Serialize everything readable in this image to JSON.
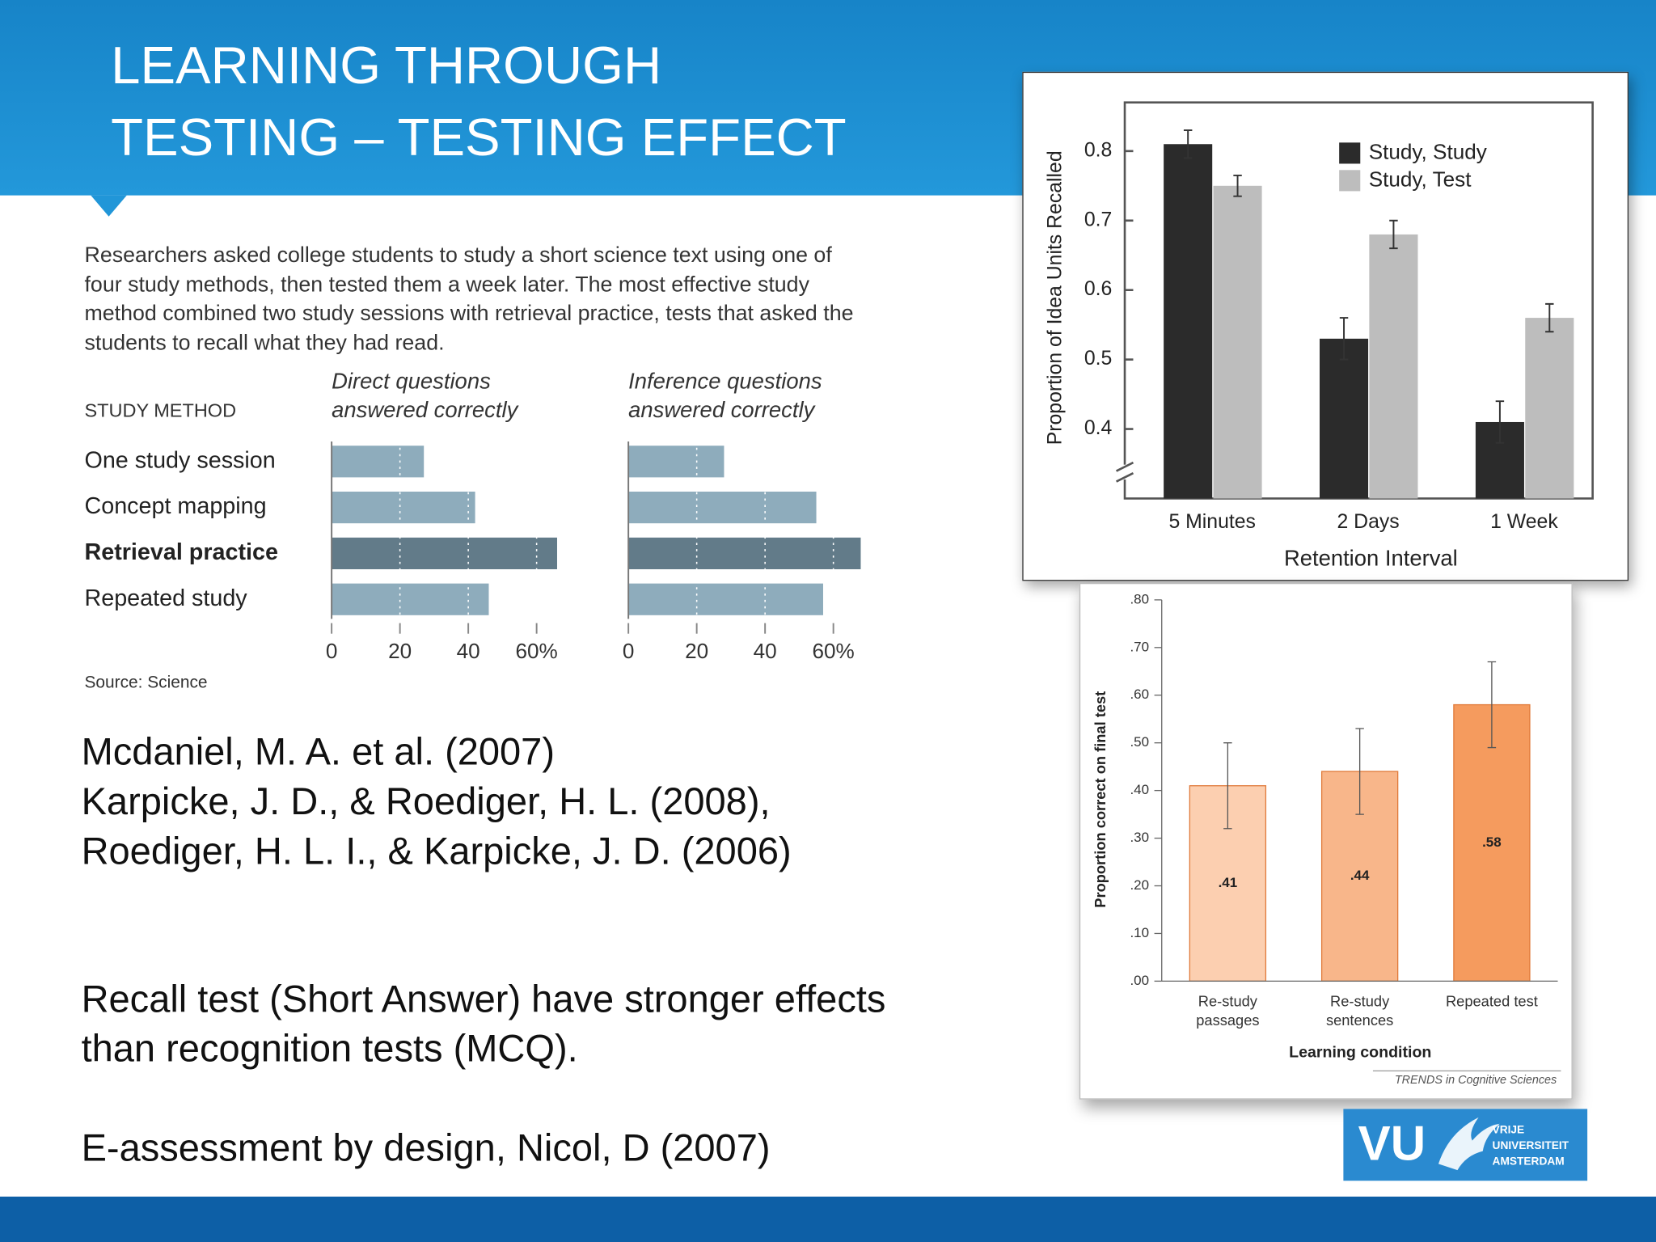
{
  "slide": {
    "title": "LEARNING THROUGH TESTING – TESTING EFFECT",
    "references": [
      "Mcdaniel, M. A. et al. (2007)",
      "Karpicke, J. D., & Roediger, H. L. (2008), Roediger, H. L. I., & Karpicke, J. D. (2006)"
    ],
    "note": "Recall test (Short Answer) have stronger effects than recognition tests (MCQ).",
    "reference2": "E-assessment by design, Nicol, D (2007)"
  },
  "logo": {
    "mark": "VU",
    "text": "VRIJE UNIVERSITEIT AMSTERDAM"
  },
  "chart_data": [
    {
      "type": "hbar",
      "caption": "Researchers asked college students to study a short science text using one of four study methods, then tested them a week later. The most effective study method combined two study sessions with retrieval practice, tests that asked the students to recall what they had read.",
      "category_header": "STUDY METHOD",
      "categories": [
        "One study session",
        "Concept mapping",
        "Retrieval practice",
        "Repeated study"
      ],
      "series": [
        {
          "name": "Direct questions answered correctly",
          "color": "#8eacbc",
          "values": [
            27,
            42,
            66,
            46
          ]
        },
        {
          "name": "Inference questions answered correctly",
          "color": "#8eacbc",
          "values": [
            28,
            55,
            68,
            57
          ]
        }
      ],
      "highlight": 2,
      "highlight_color": "#627b89",
      "xlim": [
        0,
        70
      ],
      "xticks": [
        0,
        20,
        40,
        {
          "value": 60,
          "label": "60%"
        }
      ],
      "grid": true,
      "source": "Source: Science"
    },
    {
      "type": "bar",
      "categories": [
        "5 Minutes",
        "2 Days",
        "1 Week"
      ],
      "series": [
        {
          "name": "Study, Study",
          "color": "#2b2b2b",
          "values": [
            0.81,
            0.53,
            0.41
          ],
          "errors": [
            0.02,
            0.03,
            0.03
          ]
        },
        {
          "name": "Study, Test",
          "color": "#bdbdbd",
          "values": [
            0.75,
            0.68,
            0.56
          ],
          "errors": [
            0.015,
            0.02,
            0.02
          ]
        }
      ],
      "ylim": [
        0.3,
        0.87
      ],
      "yticks": [
        0.4,
        0.5,
        0.6,
        0.7,
        0.8
      ],
      "axis_break": true,
      "ylabel": "Proportion of Idea Units Recalled",
      "xlabel": "Retention Interval",
      "legend": "upper right"
    },
    {
      "type": "bar",
      "categories": [
        "Re-study passages",
        "Re-study sentences",
        "Repeated test"
      ],
      "values": [
        0.41,
        0.44,
        0.58
      ],
      "value_labels": [
        ".41",
        ".44",
        ".58"
      ],
      "errors": [
        0.09,
        0.09,
        0.09
      ],
      "colors": [
        "#fccfb0",
        "#f8b68a",
        "#f59b5e"
      ],
      "ylim": [
        0,
        0.8
      ],
      "yticks": [
        {
          "value": 0,
          "label": ".00"
        },
        {
          "value": 0.1,
          "label": ".10"
        },
        {
          "value": 0.2,
          "label": ".20"
        },
        {
          "value": 0.3,
          "label": ".30"
        },
        {
          "value": 0.4,
          "label": ".40"
        },
        {
          "value": 0.5,
          "label": ".50"
        },
        {
          "value": 0.6,
          "label": ".60"
        },
        {
          "value": 0.7,
          "label": ".70"
        },
        {
          "value": 0.8,
          "label": ".80"
        }
      ],
      "ylabel": "Proportion correct on final test",
      "xlabel": "Learning condition",
      "source": "TRENDS in Cognitive Sciences"
    }
  ]
}
